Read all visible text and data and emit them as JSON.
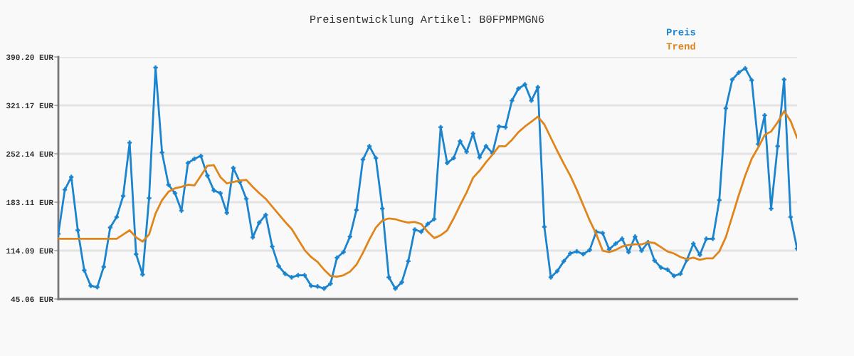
{
  "chart_data": {
    "type": "line",
    "title": "Preisentwicklung Artikel: B0FPMPMGN6",
    "categories": [
      null,
      null,
      null,
      null,
      null,
      null,
      null,
      null,
      null,
      null,
      null,
      null,
      null,
      null,
      null,
      null,
      null,
      null,
      null,
      null,
      null,
      null,
      null,
      null,
      null,
      null,
      null,
      null,
      null,
      null,
      null,
      null,
      null,
      null,
      null,
      null,
      null,
      null,
      null,
      null,
      null,
      null,
      null,
      null,
      null,
      null,
      null,
      null,
      null,
      null,
      null,
      null,
      null,
      null,
      null,
      null,
      null,
      null,
      null,
      null,
      null,
      null,
      null,
      null,
      null,
      null,
      null,
      null,
      null,
      null,
      null,
      null,
      null,
      null,
      null,
      null,
      null,
      null,
      null,
      null,
      null,
      null,
      null,
      null,
      null,
      null,
      null,
      null,
      null,
      null,
      null,
      null,
      null,
      null,
      null,
      null,
      null,
      null,
      null,
      null,
      null,
      null,
      null,
      null,
      null,
      null,
      null,
      null,
      null,
      null,
      null,
      null,
      null,
      null,
      null
    ],
    "series": [
      {
        "name": "Preis",
        "color": "#1a84cf",
        "marker": "cross",
        "values": [
          138,
          201,
          219,
          143,
          86,
          64,
          62,
          91,
          147,
          162,
          192,
          268,
          109,
          80,
          189,
          375,
          254,
          208,
          196,
          171,
          239,
          245,
          249,
          221,
          200,
          196,
          168,
          232,
          212,
          188,
          133,
          154,
          165,
          120,
          92,
          81,
          76,
          79,
          79,
          64,
          63,
          60,
          67,
          104,
          112,
          134,
          172,
          244,
          263,
          246,
          174,
          76,
          60,
          69,
          99,
          144,
          141,
          152,
          159,
          290,
          239,
          246,
          270,
          255,
          281,
          247,
          263,
          253,
          291,
          290,
          328,
          345,
          351,
          328,
          347,
          148,
          76,
          85,
          99,
          110,
          113,
          109,
          115,
          141,
          139,
          116,
          124,
          131,
          112,
          134,
          114,
          126,
          100,
          90,
          87,
          78,
          81,
          101,
          124,
          108,
          131,
          131,
          186,
          317,
          358,
          368,
          374,
          357,
          266,
          307,
          174,
          263,
          358,
          162,
          117
        ]
      },
      {
        "name": "Trend",
        "color": "#e0851a",
        "marker": "none",
        "values": [
          131,
          131,
          131,
          131,
          131,
          131,
          131,
          131,
          131,
          131,
          137,
          143,
          133,
          127,
          137,
          167,
          186,
          198,
          203,
          205,
          208,
          207,
          221,
          235,
          236,
          219,
          210,
          212,
          214,
          215,
          205,
          196,
          188,
          177,
          166,
          155,
          145,
          130,
          115,
          105,
          98,
          87,
          78,
          77,
          79,
          84,
          94,
          111,
          130,
          147,
          157,
          160,
          159,
          156,
          154,
          155,
          152,
          141,
          132,
          136,
          143,
          160,
          179,
          197,
          218,
          228,
          240,
          251,
          263,
          263,
          272,
          283,
          291,
          298,
          305,
          294,
          275,
          256,
          238,
          221,
          201,
          179,
          157,
          138,
          114,
          112,
          115,
          120,
          122,
          123,
          123,
          126,
          125,
          119,
          113,
          110,
          105,
          102,
          104,
          101,
          103,
          103,
          113,
          133,
          163,
          193,
          221,
          245,
          261,
          279,
          284,
          297,
          313,
          299,
          275
        ]
      }
    ],
    "ylim": [
      45.06,
      390.2
    ],
    "yticks": [
      {
        "value": 45.06,
        "label": "45.06 EUR"
      },
      {
        "value": 114.09,
        "label": "114.09 EUR"
      },
      {
        "value": 183.11,
        "label": "183.11 EUR"
      },
      {
        "value": 252.14,
        "label": "252.14 EUR"
      },
      {
        "value": 321.17,
        "label": "321.17 EUR"
      },
      {
        "value": 390.2,
        "label": "390.20 EUR"
      }
    ],
    "grid": "y",
    "legend": "top right",
    "line_style": "solid"
  }
}
